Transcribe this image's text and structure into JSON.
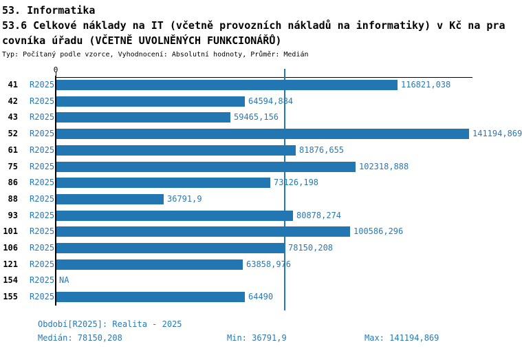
{
  "header": {
    "title_line1": "53. Informatika",
    "title_line2": "53.6 Celkové náklady na IT (včetně provozních nákladů na informatiky) v Kč na pra",
    "title_line3": "covníka úřadu (VČETNĚ UVOLNĚNÝCH FUNKCIONÁŘŮ)",
    "subtitle": "Typ: Počítaný podle vzorce, Vyhodnocení: Absolutní hodnoty, Průměr: Medián"
  },
  "chart_data": {
    "type": "bar",
    "orientation": "horizontal",
    "title": "53.6 Celkové náklady na IT (včetně provozních nákladů na informatiky) v Kč na pracovníka úřadu (VČETNĚ UVOLNĚNÝCH FUNKCIONÁŘŮ)",
    "categories": [
      "41",
      "42",
      "43",
      "52",
      "61",
      "75",
      "86",
      "88",
      "93",
      "101",
      "106",
      "121",
      "154",
      "155"
    ],
    "series_label": "R2025",
    "values": [
      116821.038,
      64594.884,
      59465.156,
      141194.869,
      81876.655,
      102318.888,
      73126.198,
      36791.9,
      80878.274,
      100586.296,
      78150.208,
      63858.976,
      null,
      64490
    ],
    "value_labels": [
      "116821,038",
      "64594,884",
      "59465,156",
      "141194,869",
      "81876,655",
      "102318,888",
      "73126,198",
      "36791,9",
      "80878,274",
      "100586,296",
      "78150,208",
      "63858,976",
      "NA",
      "64490"
    ],
    "xlim": [
      0,
      141194.869
    ],
    "zero_label": "0",
    "median_value": 78150.208,
    "grid": false,
    "legend": "none",
    "bar_color": "#2277B3",
    "median_line_color": "#2277B3",
    "text_color": "#2878B5",
    "axis_color": "#000000"
  },
  "footer": {
    "period": "Období[R2025]: Realita - 2025",
    "median": "Medián: 78150,208",
    "min": "Min: 36791,9",
    "max": "Max: 141194,869"
  }
}
